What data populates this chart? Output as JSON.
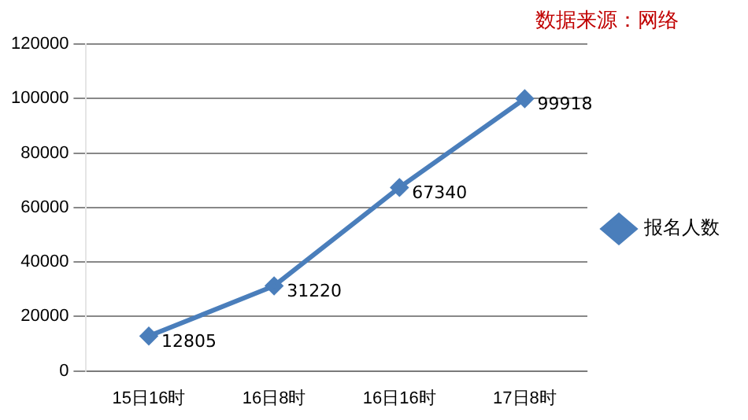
{
  "chart_data": {
    "type": "line",
    "annotations": [
      "数据来源：网络"
    ],
    "categories": [
      "15日16时",
      "16日8时",
      "16日16时",
      "17日8时"
    ],
    "series": [
      {
        "name": "报名人数",
        "color": "#4a7ebb",
        "values": [
          12805,
          31220,
          67340,
          99918
        ]
      }
    ],
    "ylim": [
      0,
      120000
    ],
    "yticks": [
      0,
      20000,
      40000,
      60000,
      80000,
      100000,
      120000
    ],
    "grid": "y",
    "legend": "right",
    "marker": "diamond",
    "line_style": "solid",
    "data_labels": true
  }
}
